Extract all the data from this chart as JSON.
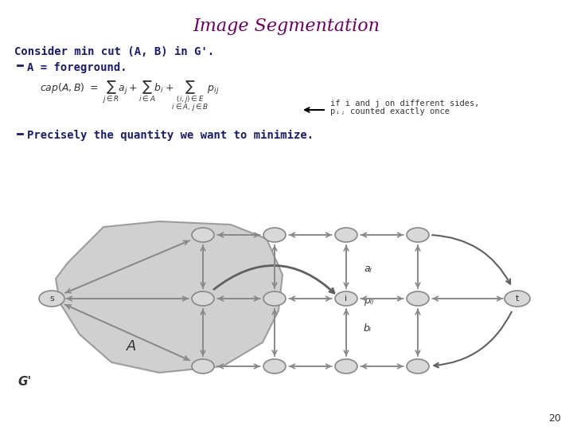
{
  "title": "Image Segmentation",
  "title_color": "#6B0060",
  "title_fontsize": 16,
  "text_color": "#1a1a6e",
  "bg_color": "#ffffff",
  "subtitle": "Consider min cut (A, B) in G'.",
  "bullet1": "A = foreground.",
  "bullet2": "Precisely the quantity we want to minimize.",
  "formula_note1": "if i and j on different sides,",
  "formula_note2": "pᵢⱼ counted exactly once",
  "label_aj": "aⱼ",
  "label_pij": "pᵢⱼ",
  "label_bi": "bᵢ",
  "label_s": "s",
  "label_t": "t",
  "label_A": "A",
  "label_G": "G'",
  "slide_num": "20",
  "node_color": "#d0d0d0",
  "node_edge": "#808080",
  "edge_color": "#808080",
  "blob_color": "#c8c8c8",
  "arrow_color": "#606060"
}
